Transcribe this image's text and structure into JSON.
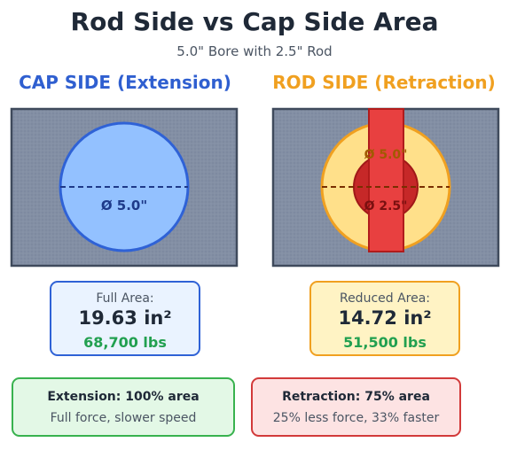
{
  "title": "Rod Side vs Cap Side Area",
  "subtitle": "5.0\" Bore with 2.5\" Rod",
  "cap_side": {
    "heading": "CAP SIDE (Extension)",
    "diameter_label": "Ø 5.0\"",
    "area_label": "Full Area:",
    "area_value": "19.63 in²",
    "force": "68,700 lbs",
    "summary_title": "Extension: 100% area",
    "summary_desc": "Full force, slower speed"
  },
  "rod_side": {
    "heading": "ROD SIDE (Retraction)",
    "bore_label": "Ø 5.0\"",
    "rod_label": "Ø 2.5\"",
    "area_label": "Reduced Area:",
    "area_value": "14.72 in²",
    "force": "51,500 lbs",
    "summary_title": "Retraction: 75% area",
    "summary_desc": "25% less force, 33% faster"
  },
  "colors": {
    "panel_fill": "#7e8aa0",
    "panel_border": "#3f4a5c",
    "cap_accent": "#2f62d6",
    "cap_fill": "#93c1ff",
    "rod_accent": "#f0a020",
    "rod_annulus_fill": "#ffe08a",
    "rod_red": "#e84040",
    "rod_dark_red": "#c02020",
    "force_green": "#22a050"
  }
}
